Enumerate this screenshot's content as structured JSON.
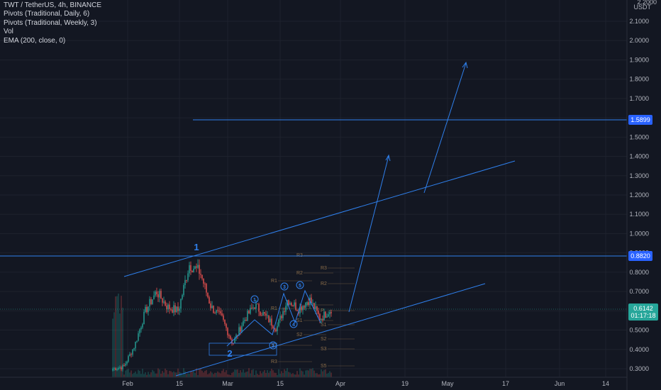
{
  "legend": {
    "symbol": "TWT / TetherUS, 4h, BINANCE",
    "pivots_daily": "Pivots (Traditional, Daily, 6)",
    "pivots_weekly": "Pivots (Traditional, Weekly, 3)",
    "vol": "Vol",
    "ema": "EMA (200, close, 0)"
  },
  "price_axis": {
    "currency": "USDT",
    "top_value": "2.2000",
    "ticks": [
      "2.1000",
      "2.0000",
      "1.9000",
      "1.8000",
      "1.7000",
      "1.6000",
      "1.5000",
      "1.4000",
      "1.3000",
      "1.2000",
      "1.1000",
      "1.0000",
      "0.9000",
      "0.8000",
      "0.7000",
      "0.6000",
      "0.5000",
      "0.4000",
      "0.3000"
    ]
  },
  "time_axis": {
    "ticks": [
      "Feb",
      "15",
      "Mar",
      "15",
      "Apr",
      "19",
      "May",
      "17",
      "Jun",
      "14"
    ]
  },
  "price_tags": {
    "level_high": "1.5899",
    "level_mid": "0.8820",
    "current_price": "0.6142",
    "countdown": "01:17:18"
  },
  "wave_labels": {
    "w1": "1",
    "w2": "2",
    "c1": "1",
    "c2": "2",
    "c3": "3",
    "c4": "4",
    "c5": "5"
  },
  "pivot_labels": [
    "R3",
    "R2",
    "R3",
    "R1",
    "R2",
    "R1",
    "P",
    "P",
    "S1",
    "S1",
    "S2",
    "S2",
    "S3",
    "S3",
    "R3",
    "S5"
  ],
  "colors": {
    "background": "#131722",
    "grid": "#1e222d",
    "up_candle": "#26a69a",
    "down_candle": "#ef5350",
    "drawing": "#2f80ed",
    "pivot": "#8d6e4a",
    "tag_blue": "#2962ff",
    "tag_teal": "#26a69a"
  },
  "chart_data": {
    "type": "candlestick",
    "symbol": "TWT / TetherUS",
    "timeframe": "4h",
    "exchange": "BINANCE",
    "y_range": [
      0.27,
      2.2
    ],
    "last_price": 0.6142,
    "horizontal_levels": [
      1.5899,
      0.882
    ],
    "approx_closes": [
      [
        "Jan 28",
        0.3
      ],
      [
        "Feb 1",
        0.31
      ],
      [
        "Feb 5",
        0.42
      ],
      [
        "Feb 8",
        0.6
      ],
      [
        "Feb 10",
        0.7
      ],
      [
        "Feb 13",
        0.62
      ],
      [
        "Feb 16",
        0.6
      ],
      [
        "Feb 19",
        0.84
      ],
      [
        "Feb 20",
        0.8
      ],
      [
        "Feb 22",
        0.62
      ],
      [
        "Feb 25",
        0.56
      ],
      [
        "Feb 28",
        0.43
      ],
      [
        "Mar 3",
        0.55
      ],
      [
        "Mar 7",
        0.63
      ],
      [
        "Mar 10",
        0.57
      ],
      [
        "Mar 13",
        0.51
      ],
      [
        "Mar 16",
        0.66
      ],
      [
        "Mar 19",
        0.61
      ],
      [
        "Mar 22",
        0.66
      ],
      [
        "Mar 25",
        0.56
      ],
      [
        "Mar 28",
        0.61
      ]
    ]
  }
}
